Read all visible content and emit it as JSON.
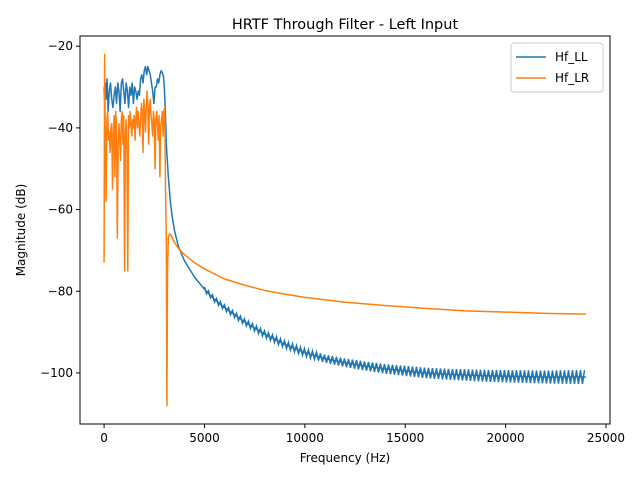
{
  "chart_data": {
    "type": "line",
    "title": "HRTF Through Filter - Left Input",
    "xlabel": "Frequency (Hz)",
    "ylabel": "Magnitude (dB)",
    "xlim": [
      -1200,
      25200
    ],
    "ylim": [
      -112.5,
      -17.5
    ],
    "xticks": [
      0,
      5000,
      10000,
      15000,
      20000,
      25000
    ],
    "xtick_labels": [
      "0",
      "5000",
      "10000",
      "15000",
      "20000",
      "25000"
    ],
    "yticks": [
      -20,
      -40,
      -60,
      -80,
      -100
    ],
    "ytick_labels": [
      "−20",
      "−40",
      "−60",
      "−80",
      "−100"
    ],
    "grid": false,
    "legend_position": "top-right",
    "series": [
      {
        "name": "Hf_LL",
        "color": "#1f77b4",
        "x": [
          0,
          30,
          60,
          100,
          150,
          200,
          260,
          320,
          380,
          440,
          500,
          560,
          620,
          680,
          740,
          800,
          860,
          920,
          980,
          1040,
          1100,
          1160,
          1220,
          1280,
          1340,
          1400,
          1460,
          1520,
          1580,
          1640,
          1700,
          1760,
          1820,
          1880,
          1940,
          2000,
          2060,
          2120,
          2180,
          2240,
          2300,
          2360,
          2420,
          2480,
          2540,
          2600,
          2660,
          2720,
          2780,
          2840,
          2900,
          2960,
          3000,
          3050,
          3100,
          3200,
          3300,
          3400,
          3500,
          3700,
          4000,
          4500,
          5000,
          5500,
          6000,
          7000,
          8000,
          9000,
          10000,
          11000,
          12000,
          13000,
          14000,
          15000,
          16000,
          17000,
          18000,
          19000,
          20000,
          21000,
          22000,
          23000,
          24000
        ],
        "y": [
          -30,
          -34,
          -29,
          -33,
          -28,
          -36,
          -31,
          -29,
          -33,
          -35,
          -32,
          -30,
          -34,
          -29,
          -31,
          -36,
          -29,
          -28,
          -31,
          -34,
          -29,
          -31,
          -35,
          -30,
          -32,
          -29,
          -34,
          -30,
          -31,
          -33,
          -31,
          -32,
          -28,
          -27,
          -29,
          -26,
          -25,
          -27,
          -25,
          -26,
          -27,
          -29,
          -31,
          -34,
          -30,
          -30,
          -28,
          -29,
          -27,
          -26,
          -26.5,
          -27.5,
          -30,
          -36,
          -44,
          -52,
          -58,
          -62,
          -65,
          -69,
          -72.5,
          -76.5,
          -79.5,
          -82,
          -84,
          -87.5,
          -90.5,
          -93,
          -95,
          -96.5,
          -97.5,
          -98.3,
          -99,
          -99.5,
          -100,
          -100.3,
          -100.5,
          -100.7,
          -100.8,
          -100.9,
          -101,
          -101,
          -101
        ],
        "band_from_x": 5000,
        "band_halfwidth_db": [
          0.6,
          1.2,
          1.7
        ]
      },
      {
        "name": "Hf_LR",
        "color": "#ff7f0e",
        "x": [
          0,
          25,
          50,
          70,
          100,
          140,
          180,
          220,
          260,
          300,
          340,
          380,
          420,
          460,
          500,
          540,
          580,
          620,
          660,
          700,
          740,
          780,
          820,
          860,
          900,
          940,
          980,
          1020,
          1060,
          1100,
          1140,
          1180,
          1220,
          1260,
          1300,
          1340,
          1380,
          1420,
          1460,
          1500,
          1540,
          1580,
          1620,
          1660,
          1700,
          1740,
          1780,
          1820,
          1860,
          1900,
          1940,
          1980,
          2020,
          2060,
          2100,
          2140,
          2180,
          2220,
          2260,
          2300,
          2340,
          2380,
          2420,
          2460,
          2500,
          2540,
          2580,
          2620,
          2660,
          2700,
          2740,
          2780,
          2820,
          2860,
          2900,
          2940,
          2980,
          3020,
          3060,
          3100,
          3130,
          3160,
          3200,
          3250,
          3300,
          3350,
          3400,
          3500,
          3700,
          4000,
          4500,
          5000,
          6000,
          7000,
          8000,
          9000,
          10000,
          12000,
          14000,
          16000,
          18000,
          20000,
          22000,
          24000
        ],
        "y": [
          -73,
          -22,
          -38,
          -45,
          -58,
          -38,
          -36,
          -43,
          -41,
          -46,
          -40,
          -39,
          -55,
          -42,
          -37,
          -52,
          -36,
          -40,
          -67,
          -45,
          -39,
          -43,
          -48,
          -38,
          -36,
          -44,
          -37,
          -75,
          -42,
          -38,
          -46,
          -75,
          -37,
          -40,
          -36,
          -39,
          -42,
          -38,
          -40,
          -37,
          -43,
          -38,
          -35,
          -40,
          -36,
          -39,
          -42,
          -38,
          -34,
          -36,
          -46,
          -33,
          -36,
          -41,
          -35,
          -31,
          -34,
          -44,
          -35,
          -33,
          -37,
          -39,
          -42,
          -36,
          -38,
          -50,
          -38,
          -36,
          -39,
          -43,
          -37,
          -52,
          -40,
          -38,
          -36,
          -42,
          -36,
          -35,
          -55,
          -68,
          -108,
          -75,
          -67,
          -66,
          -66,
          -66.5,
          -67,
          -68,
          -69.5,
          -71,
          -73,
          -74.5,
          -77,
          -78.5,
          -79.8,
          -80.7,
          -81.5,
          -82.7,
          -83.5,
          -84.2,
          -84.8,
          -85.1,
          -85.4,
          -85.6
        ]
      }
    ]
  }
}
